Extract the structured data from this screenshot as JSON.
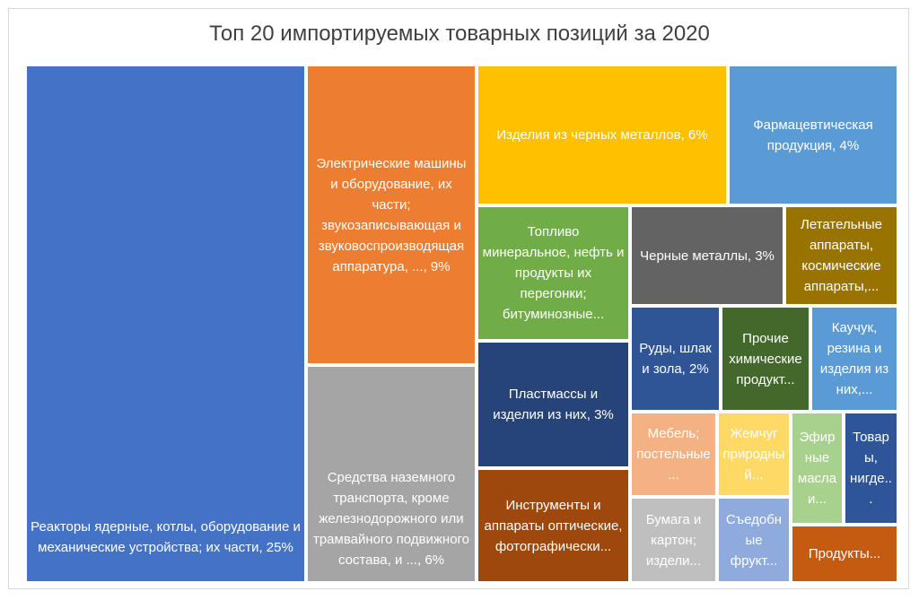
{
  "title": "Топ 20 импортируемых товарных позиций за 2020",
  "chart_data": {
    "type": "treemap",
    "title": "Топ 20 импортируемых товарных позиций за 2020",
    "items": [
      {
        "label": "Реакторы ядерные, котлы, оборудование и механические устройства; их части, 25%",
        "value": 25,
        "color": "#4472c4"
      },
      {
        "label": "Электрические машины и оборудование, их части; звукозаписывающая и звуковоспроизводящая аппаратура, ..., 9%",
        "value": 9,
        "color": "#ed7d31"
      },
      {
        "label": "Средства наземного транспорта, кроме железнодорожного или трамвайного подвижного состава, и ..., 6%",
        "value": 6,
        "color": "#a5a5a5"
      },
      {
        "label": "Изделия из черных металлов, 6%",
        "value": 6,
        "color": "#ffc000"
      },
      {
        "label": "Фармацевтическая продукция, 4%",
        "value": 4,
        "color": "#5b9bd5"
      },
      {
        "label": "Топливо минеральное, нефть и продукты их перегонки; битуминозные...",
        "value": null,
        "color": "#70ad47"
      },
      {
        "label": "Черные металлы, 3%",
        "value": 3,
        "color": "#636363"
      },
      {
        "label": "Летательные аппараты, космические аппараты,...",
        "value": null,
        "color": "#997300"
      },
      {
        "label": "Пластмассы и изделия из них, 3%",
        "value": 3,
        "color": "#264478"
      },
      {
        "label": "Руды, шлак и зола, 2%",
        "value": 2,
        "color": "#2f5597"
      },
      {
        "label": "Прочие химические продукт...",
        "value": null,
        "color": "#43682b"
      },
      {
        "label": "Каучук, резина и изделия из них,...",
        "value": null,
        "color": "#5b9bd5"
      },
      {
        "label": "Инструменты и аппараты оптические, фотографически...",
        "value": null,
        "color": "#9e480e"
      },
      {
        "label": "Мебель; постельные...",
        "value": null,
        "color": "#f4b183"
      },
      {
        "label": "Жемчуг природный...",
        "value": null,
        "color": "#ffd966"
      },
      {
        "label": "Эфирные масла и...",
        "value": null,
        "color": "#a9d18e"
      },
      {
        "label": "Товары, нигде...",
        "value": null,
        "color": "#2e5597"
      },
      {
        "label": "Бумага и картон; издели...",
        "value": null,
        "color": "#bfbfbf"
      },
      {
        "label": "Съедобные фрукт...",
        "value": null,
        "color": "#8faadc"
      },
      {
        "label": "Продукты...",
        "value": null,
        "color": "#c55a11"
      }
    ]
  }
}
